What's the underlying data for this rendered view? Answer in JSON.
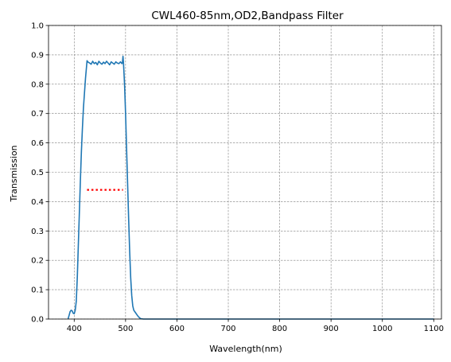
{
  "chart_data": {
    "type": "line",
    "title": "CWL460-85nm,OD2,Bandpass Filter",
    "xlabel": "Wavelength(nm)",
    "ylabel": "Transmission",
    "xlim": [
      350,
      1115
    ],
    "ylim": [
      0,
      1.0
    ],
    "xticks": [
      400,
      500,
      600,
      700,
      800,
      900,
      1000,
      1100
    ],
    "yticks": [
      0.0,
      0.1,
      0.2,
      0.3,
      0.4,
      0.5,
      0.6,
      0.7,
      0.8,
      0.9,
      1.0
    ],
    "grid": true,
    "series": [
      {
        "color": "#1f77b4",
        "style": "solid",
        "x": [
          388,
          390,
          392,
          394,
          396,
          398,
          400,
          402,
          404,
          406,
          408,
          410,
          412,
          414,
          416,
          418,
          420,
          422,
          424,
          425,
          427,
          430,
          433,
          436,
          439,
          442,
          445,
          448,
          451,
          454,
          457,
          460,
          463,
          466,
          469,
          472,
          475,
          478,
          481,
          484,
          487,
          490,
          493,
          494,
          495,
          496,
          498,
          500,
          502,
          504,
          506,
          508,
          510,
          512,
          514,
          516,
          518,
          520,
          522,
          525,
          528,
          530,
          535,
          600,
          700,
          800,
          900,
          1000,
          1100
        ],
        "y": [
          0.0,
          0.012,
          0.025,
          0.03,
          0.028,
          0.02,
          0.018,
          0.03,
          0.06,
          0.14,
          0.25,
          0.36,
          0.47,
          0.57,
          0.65,
          0.72,
          0.77,
          0.82,
          0.86,
          0.88,
          0.875,
          0.872,
          0.868,
          0.878,
          0.87,
          0.874,
          0.866,
          0.878,
          0.872,
          0.868,
          0.875,
          0.87,
          0.878,
          0.872,
          0.866,
          0.876,
          0.872,
          0.868,
          0.876,
          0.872,
          0.87,
          0.876,
          0.87,
          0.875,
          0.895,
          0.87,
          0.8,
          0.7,
          0.58,
          0.46,
          0.34,
          0.23,
          0.14,
          0.08,
          0.045,
          0.03,
          0.025,
          0.02,
          0.015,
          0.008,
          0.003,
          0.001,
          0.0,
          0.0,
          0.0,
          0.0,
          0.0,
          0.0,
          0.0
        ]
      },
      {
        "color": "#ff0000",
        "style": "dotted",
        "x": [
          425,
          495
        ],
        "y": [
          0.44,
          0.44
        ]
      }
    ]
  }
}
